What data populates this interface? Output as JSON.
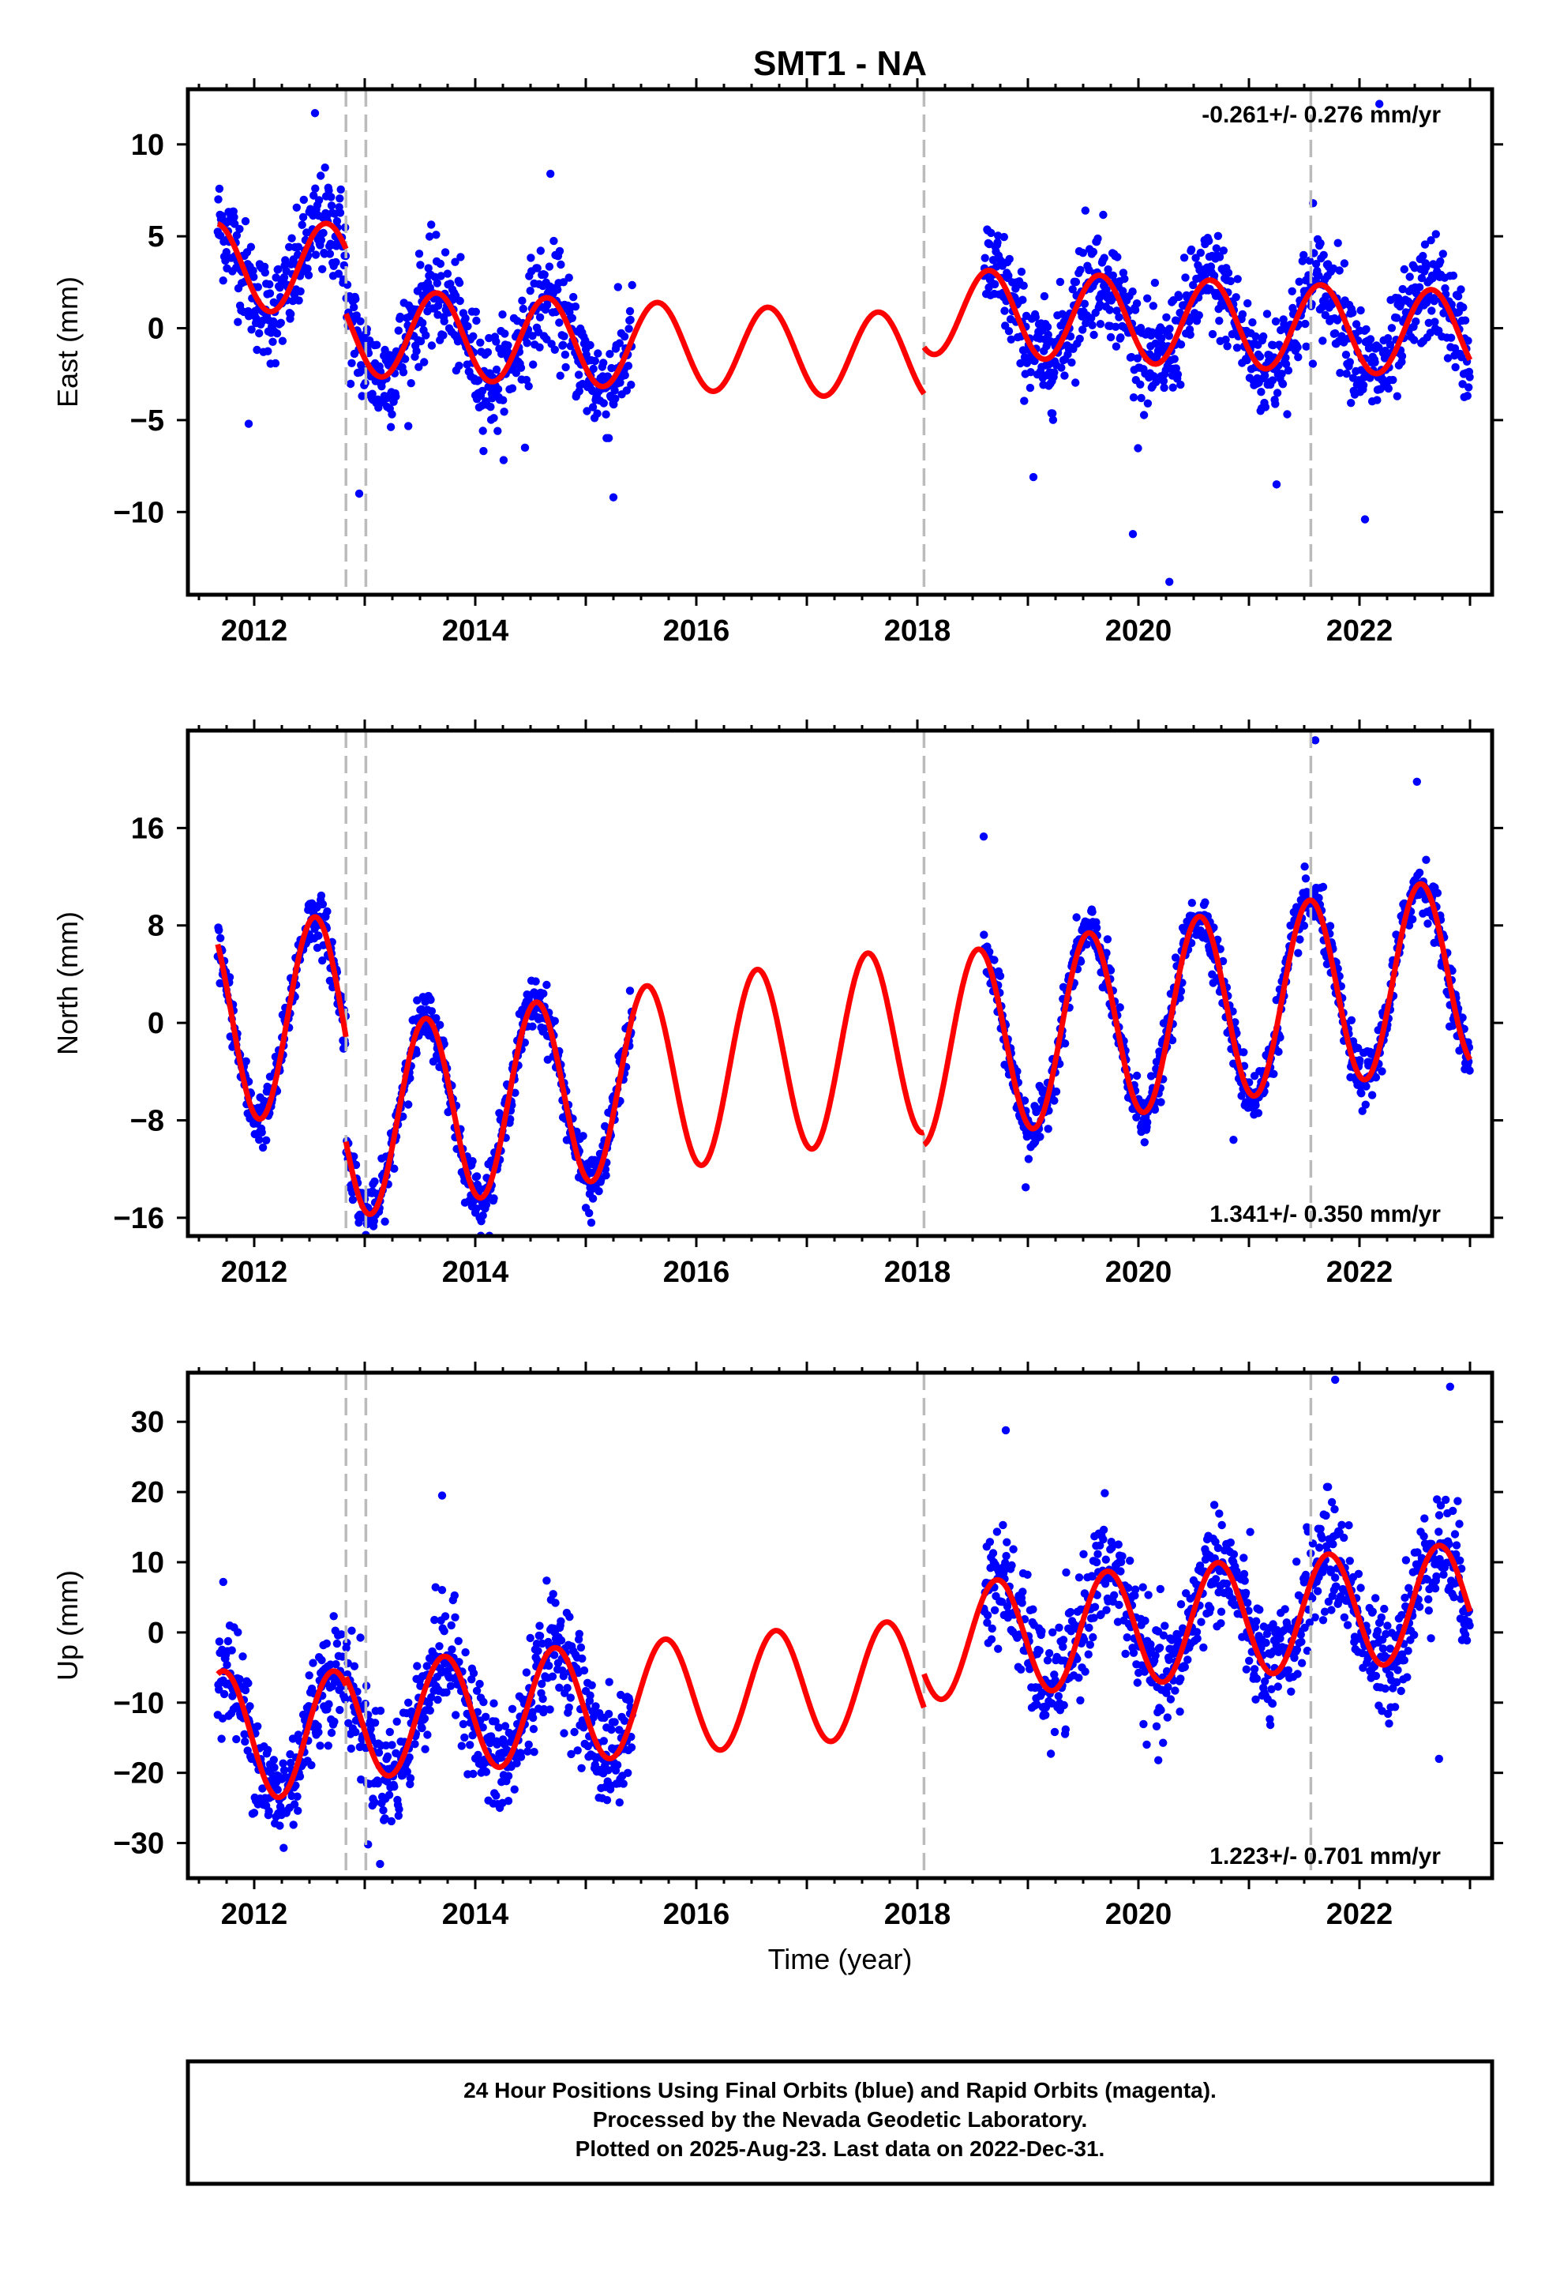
{
  "title": "SMT1 - NA",
  "xlabel": "Time (year)",
  "colors": {
    "final": "#0000ff",
    "model": "#ff0000",
    "events": "#bbbbbb",
    "frame": "#000000"
  },
  "footer": {
    "line1": "24 Hour Positions Using Final Orbits (blue) and Rapid Orbits (magenta).",
    "line2": "Processed by the Nevada Geodetic Laboratory.",
    "line3": "Plotted on 2025-Aug-23. Last data on 2022-Dec-31."
  },
  "chart_data": [
    {
      "type": "scatter",
      "component": "east",
      "ylabel": "East (mm)",
      "rate_label": "-0.261+/- 0.276 mm/yr",
      "rate_label_pos": "top-right",
      "xlim": [
        2011.4,
        2023.2
      ],
      "ylim": [
        -14.5,
        13
      ],
      "xticks": [
        2012,
        2014,
        2016,
        2018,
        2020,
        2022
      ],
      "yticks": [
        -10,
        -5,
        0,
        5,
        10
      ],
      "event_lines": [
        2012.83,
        2013.01,
        2018.06,
        2021.56
      ],
      "data_gap": [
        2015.42,
        2018.6
      ],
      "model": {
        "segments": [
          {
            "start": 2011.67,
            "end": 2012.83,
            "offset": 3.3,
            "trend": 0,
            "amplitude": 2.4,
            "phase_peak": 0.65
          },
          {
            "start": 2012.83,
            "end": 2018.06,
            "offset": -0.9,
            "trend": -0.261,
            "amplitude": 2.35,
            "phase_peak": 0.65
          },
          {
            "start": 2018.06,
            "end": 2023.0,
            "offset": 0.3,
            "trend": -0.261,
            "amplitude": 2.35,
            "phase_peak": 0.65
          }
        ]
      },
      "scatter_noise": 1.4,
      "point_count": 2300,
      "outliers": [
        {
          "x": 2012.55,
          "y": 11.7
        },
        {
          "x": 2014.68,
          "y": 8.4
        },
        {
          "x": 2015.25,
          "y": -9.2
        },
        {
          "x": 2012.95,
          "y": -9.0
        },
        {
          "x": 2019.52,
          "y": 6.4
        },
        {
          "x": 2019.05,
          "y": -8.1
        },
        {
          "x": 2019.95,
          "y": -11.2
        },
        {
          "x": 2020.28,
          "y": -13.8
        },
        {
          "x": 2021.25,
          "y": -8.5
        },
        {
          "x": 2022.05,
          "y": -10.4
        },
        {
          "x": 2022.18,
          "y": 12.2
        },
        {
          "x": 2021.58,
          "y": 6.8
        },
        {
          "x": 2014.45,
          "y": -6.5
        },
        {
          "x": 2011.95,
          "y": -5.2
        }
      ]
    },
    {
      "type": "scatter",
      "component": "north",
      "ylabel": "North (mm)",
      "rate_label": "1.341+/- 0.350 mm/yr",
      "rate_label_pos": "bottom-right",
      "xlim": [
        2011.4,
        2023.2
      ],
      "ylim": [
        -17.5,
        24
      ],
      "xticks": [
        2012,
        2014,
        2016,
        2018,
        2020,
        2022
      ],
      "yticks": [
        -16,
        -8,
        0,
        8,
        16
      ],
      "event_lines": [
        2012.83,
        2013.01,
        2018.06,
        2021.56
      ],
      "data_gap": [
        2015.42,
        2018.6
      ],
      "model": {
        "segments": [
          {
            "start": 2011.67,
            "end": 2012.83,
            "offset": 0.4,
            "trend": 0,
            "amplitude": 8.3,
            "phase_peak": 0.55
          },
          {
            "start": 2012.83,
            "end": 2018.06,
            "offset": -4.8,
            "trend": 1.341,
            "amplitude": 7.7,
            "phase_peak": 0.55
          },
          {
            "start": 2018.06,
            "end": 2023.0,
            "offset": 1.0,
            "trend": 1.341,
            "amplitude": 7.7,
            "phase_peak": 0.55
          }
        ]
      },
      "scatter_noise": 1.1,
      "point_count": 2300,
      "outliers": [
        {
          "x": 2018.6,
          "y": 15.3
        },
        {
          "x": 2018.98,
          "y": -13.5
        },
        {
          "x": 2020.86,
          "y": -9.6
        },
        {
          "x": 2021.6,
          "y": 23.2
        },
        {
          "x": 2013.05,
          "y": -15.6
        },
        {
          "x": 2015.05,
          "y": -16.4
        },
        {
          "x": 2022.52,
          "y": 19.8
        }
      ]
    },
    {
      "type": "scatter",
      "component": "up",
      "ylabel": "Up (mm)",
      "rate_label": "1.223+/- 0.701 mm/yr",
      "rate_label_pos": "bottom-right",
      "xlim": [
        2011.4,
        2023.2
      ],
      "ylim": [
        -35,
        37
      ],
      "xticks": [
        2012,
        2014,
        2016,
        2018,
        2020,
        2022
      ],
      "yticks": [
        -30,
        -20,
        -10,
        0,
        10,
        20,
        30
      ],
      "event_lines": [
        2012.83,
        2013.01,
        2018.06,
        2021.56
      ],
      "data_gap": [
        2015.42,
        2018.6
      ],
      "model": {
        "segments": [
          {
            "start": 2011.67,
            "end": 2012.83,
            "offset": -14.5,
            "trend": 0,
            "amplitude": 9.0,
            "phase_peak": 0.72
          },
          {
            "start": 2012.83,
            "end": 2018.06,
            "offset": -9.5,
            "trend": 1.223,
            "amplitude": 8.2,
            "phase_peak": 0.72
          },
          {
            "start": 2018.06,
            "end": 2023.0,
            "offset": 1.5,
            "trend": 1.223,
            "amplitude": 8.2,
            "phase_peak": 0.72
          }
        ]
      },
      "scatter_noise": 4.0,
      "point_count": 2300,
      "outliers": [
        {
          "x": 2013.03,
          "y": -30.2
        },
        {
          "x": 2014.3,
          "y": -24.0
        },
        {
          "x": 2020.18,
          "y": -18.2
        },
        {
          "x": 2021.78,
          "y": 36.0
        },
        {
          "x": 2022.82,
          "y": 35.0
        },
        {
          "x": 2018.8,
          "y": 28.8
        },
        {
          "x": 2013.7,
          "y": 19.5
        },
        {
          "x": 2022.72,
          "y": -18.0
        },
        {
          "x": 2015.3,
          "y": -21.5
        },
        {
          "x": 2011.72,
          "y": 7.2
        }
      ]
    }
  ]
}
